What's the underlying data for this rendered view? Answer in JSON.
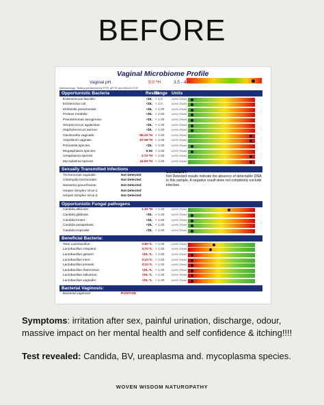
{
  "heading": "BEFORE",
  "report": {
    "title": "Vaginal Microbiome Profile",
    "ph": {
      "label": "Vaginal pH.",
      "result": "5.0 *H",
      "range": "3.5 - 4.5",
      "marker_fraction": 0.9
    },
    "methodology": "Methodology: Testing performed by PCR, qPCR and MALDI-TOF",
    "columns": {
      "result": "Result",
      "range": "Range",
      "units": "Units"
    },
    "sections": [
      {
        "title": "Opportunistic Bacteria",
        "scale": "path",
        "show_columns": true,
        "rows": [
          {
            "name": "Enterococcus faecalis:",
            "result": "<DL",
            "range": "< 1.0",
            "units": "x10^5 CFU/ml",
            "color": "#111111",
            "marker": 0.04
          },
          {
            "name": "Escherichia coli:",
            "result": "<DL",
            "range": "< 1.0",
            "units": "x10^5 CFU/ml",
            "color": "#111111",
            "marker": 0.04
          },
          {
            "name": "Klebsiella pneumoniae:",
            "result": "<DL",
            "range": "< 1.00",
            "units": "x10^5 CFU/ml",
            "color": "#111111",
            "marker": 0.04
          },
          {
            "name": "Proteus mirabilis:",
            "result": "<DL",
            "range": "< 1.00",
            "units": "x10^5 CFU/ml",
            "color": "#111111",
            "marker": 0.04
          },
          {
            "name": "Pseudomonas aeruginosa:",
            "result": "<DL",
            "range": "< 1.00",
            "units": "x10^5 CFU/ml",
            "color": "#111111",
            "marker": 0.04
          },
          {
            "name": "Streptococcus agalactiae:",
            "result": "<DL",
            "range": "< 1.00",
            "units": "x10^5 CFU/ml",
            "color": "#111111",
            "marker": 0.04
          },
          {
            "name": "Staphylococcus aureus:",
            "result": "<DL",
            "range": "< 1.00",
            "units": "x10^5 CFU/ml",
            "color": "#111111",
            "marker": 0.04
          },
          {
            "name": "Gardnerella vaginalis:",
            "result": "89.43 *H",
            "range": "< 1.00",
            "units": "x10^5 CFU/ml",
            "color": "#e00000",
            "marker": 0.96
          },
          {
            "name": "Atopobium vaginae:",
            "result": "67.08 *H",
            "range": "< 1.00",
            "units": "x10^5 CFU/ml",
            "color": "#e00000",
            "marker": 0.96
          },
          {
            "name": "Prevotella species:",
            "result": "<DL",
            "range": "< 1.00",
            "units": "x10^5 CFU/ml",
            "color": "#111111",
            "marker": 0.04
          },
          {
            "name": "Megasphaera species:",
            "result": "0.05",
            "range": "< 1.00",
            "units": "x10^5 CFU/ml",
            "color": "#111111",
            "marker": 0.04
          },
          {
            "name": "Ureaplasma species",
            "result": "2.72 *H",
            "range": "< 1.00",
            "units": "x10^5 CFU/ml",
            "color": "#e00000",
            "marker": 0.96
          },
          {
            "name": "Mycoplasma species",
            "result": "41.93 *H",
            "range": "< 1.00",
            "units": "x10^5 CFU/ml",
            "color": "#e00000",
            "marker": 0.96
          }
        ]
      },
      {
        "title": "Sexually Transmitted Infections",
        "scale": "none",
        "show_columns": false,
        "rows": [
          {
            "name": "Trichomonas vaginalis:",
            "result": "Not Detected",
            "range": "",
            "units": "",
            "color": "#111111",
            "marker": null
          },
          {
            "name": "Chlamydia trachomatis:",
            "result": "Not Detected",
            "range": "",
            "units": "",
            "color": "#111111",
            "marker": null
          },
          {
            "name": "Neisseria gonorrhoeae:",
            "result": "Not Detected",
            "range": "",
            "units": "",
            "color": "#111111",
            "marker": null
          },
          {
            "name": "Herpes Simplex Virus-1:",
            "result": "Not Detected",
            "range": "",
            "units": "",
            "color": "#111111",
            "marker": null
          },
          {
            "name": "Herpes Simplex Virus-2:",
            "result": "Not Detected",
            "range": "",
            "units": "",
            "color": "#111111",
            "marker": null
          }
        ]
      },
      {
        "title": "Opportunistic Fungal pathogens",
        "scale": "fung",
        "show_columns": false,
        "rows": [
          {
            "name": "Candida albicans:",
            "result": "1.10 *H",
            "range": "< 1.00",
            "units": "x10^5 CFU/ml",
            "color": "#e00000",
            "marker": 0.62
          },
          {
            "name": "Candida glabrata:",
            "result": "<DL",
            "range": "< 1.00",
            "units": "x10^5 CFU/ml",
            "color": "#111111",
            "marker": 0.04
          },
          {
            "name": "Candida krusei:",
            "result": "<DL",
            "range": "< 1.00",
            "units": "x10^5 CFU/ml",
            "color": "#111111",
            "marker": 0.04
          },
          {
            "name": "Candida parapsilosis:",
            "result": "<DL",
            "range": "< 1.00",
            "units": "x10^5 CFU/ml",
            "color": "#111111",
            "marker": 0.04
          },
          {
            "name": "Candida tropicalis:",
            "result": "<DL",
            "range": "< 1.00",
            "units": "x10^5 CFU/ml",
            "color": "#111111",
            "marker": 0.04
          }
        ]
      },
      {
        "title": "Beneficial Bacteria:",
        "scale": "ben",
        "show_columns": false,
        "rows": [
          {
            "name": "Total Lactobacillus:",
            "result": "0.80 *L",
            "range": "> 1.00",
            "units": "x10^6 CFU/ml",
            "color": "#e00000",
            "marker": 0.38
          },
          {
            "name": "Lactobacillus crispatus:",
            "result": "0.70 *L",
            "range": "> 1.00",
            "units": "x10^6 CFU/ml",
            "color": "#e00000",
            "marker": 0.33
          },
          {
            "name": "Lactobacillus gasseri:",
            "result": "<DL *L",
            "range": "> 1.00",
            "units": "x10^6 CFU/ml",
            "color": "#e00000",
            "marker": 0.04
          },
          {
            "name": "Lactobacillus iners:",
            "result": "0.10 *L",
            "range": "> 1.00",
            "units": "x10^6 CFU/ml",
            "color": "#e00000",
            "marker": 0.04
          },
          {
            "name": "Lactobacillus jensenii:",
            "result": "0.10 *L",
            "range": "> 1.00",
            "units": "x10^6 CFU/ml",
            "color": "#e00000",
            "marker": 0.04
          },
          {
            "name": "Lactobacillus rhamnosus:",
            "result": "<DL *L",
            "range": "> 1.00",
            "units": "x10^6 CFU/ml",
            "color": "#e00000",
            "marker": 0.04
          },
          {
            "name": "Lactobacillus salivarius:",
            "result": "<DL *L",
            "range": "> 1.00",
            "units": "x10^6 CFU/ml",
            "color": "#e00000",
            "marker": 0.04
          },
          {
            "name": "Lactobacillus vaginalis:",
            "result": "<DL *L",
            "range": "> 1.00",
            "units": "x10^6 CFU/ml",
            "color": "#e00000",
            "marker": 0.04
          }
        ]
      },
      {
        "title": "Bacterial Vaginosis:",
        "scale": "none",
        "show_columns": false,
        "rows": [
          {
            "name": "Bacterial vaginosis",
            "result": "POSITIVE",
            "range": "",
            "units": "",
            "color": "#e00000",
            "marker": null
          }
        ]
      }
    ],
    "comment": {
      "title": "COMMENT:",
      "text": "Not Detected results indicate the absence of detectable DNA in this sample. A negative result does not completely exclude infection."
    }
  },
  "symptoms": {
    "label": "Symptoms",
    "text": ": irritation after sex, painful urination, discharge, odour, massive impact on her mental health and self confidence & itching!!!!"
  },
  "test": {
    "label": "Test revealed:",
    "text": " Candida, BV, ureaplasma and. mycoplasma species."
  },
  "brand": "WOVEN WISDOM NATUROPATHY"
}
